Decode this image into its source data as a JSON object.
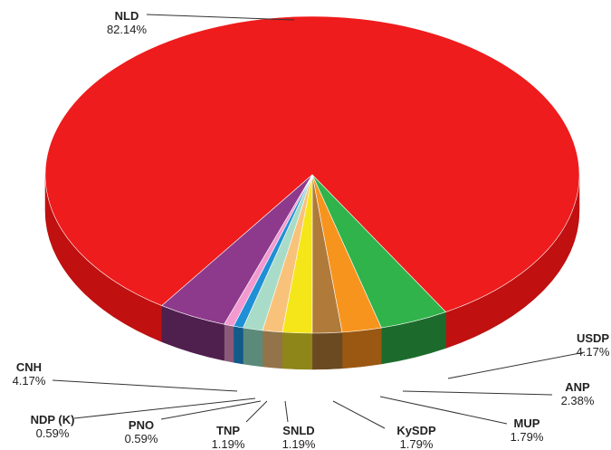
{
  "chart_data": {
    "type": "pie",
    "style": "3d-exploded-none",
    "title": "",
    "slices": [
      {
        "name": "NLD",
        "value": 82.14,
        "label": "82.14%",
        "color": "#ee1c1c",
        "side": "#c01010"
      },
      {
        "name": "USDP",
        "value": 4.17,
        "label": "4.17%",
        "color": "#2fb34a",
        "side": "#1c6b2c"
      },
      {
        "name": "ANP",
        "value": 2.38,
        "label": "2.38%",
        "color": "#f7941d",
        "side": "#9a5812"
      },
      {
        "name": "MUP",
        "value": 1.79,
        "label": "1.79%",
        "color": "#b07a3a",
        "side": "#6b4a22"
      },
      {
        "name": "KySDP",
        "value": 1.79,
        "label": "1.79%",
        "color": "#f5e61a",
        "side": "#8f861a"
      },
      {
        "name": "SNLD",
        "value": 1.19,
        "label": "1.19%",
        "color": "#f9c27a",
        "side": "#93744a"
      },
      {
        "name": "TNP",
        "value": 1.19,
        "label": "1.19%",
        "color": "#a8dcc8",
        "side": "#5c8a7a"
      },
      {
        "name": "PNO",
        "value": 0.59,
        "label": "0.59%",
        "color": "#1f8fd6",
        "side": "#125a8a"
      },
      {
        "name": "NDP (K)",
        "value": 0.59,
        "label": "0.59%",
        "color": "#f29ad0",
        "side": "#8a5a78"
      },
      {
        "name": "CNH",
        "value": 4.17,
        "label": "4.17%",
        "color": "#8e3a8c",
        "side": "#4f1f4e"
      }
    ]
  }
}
